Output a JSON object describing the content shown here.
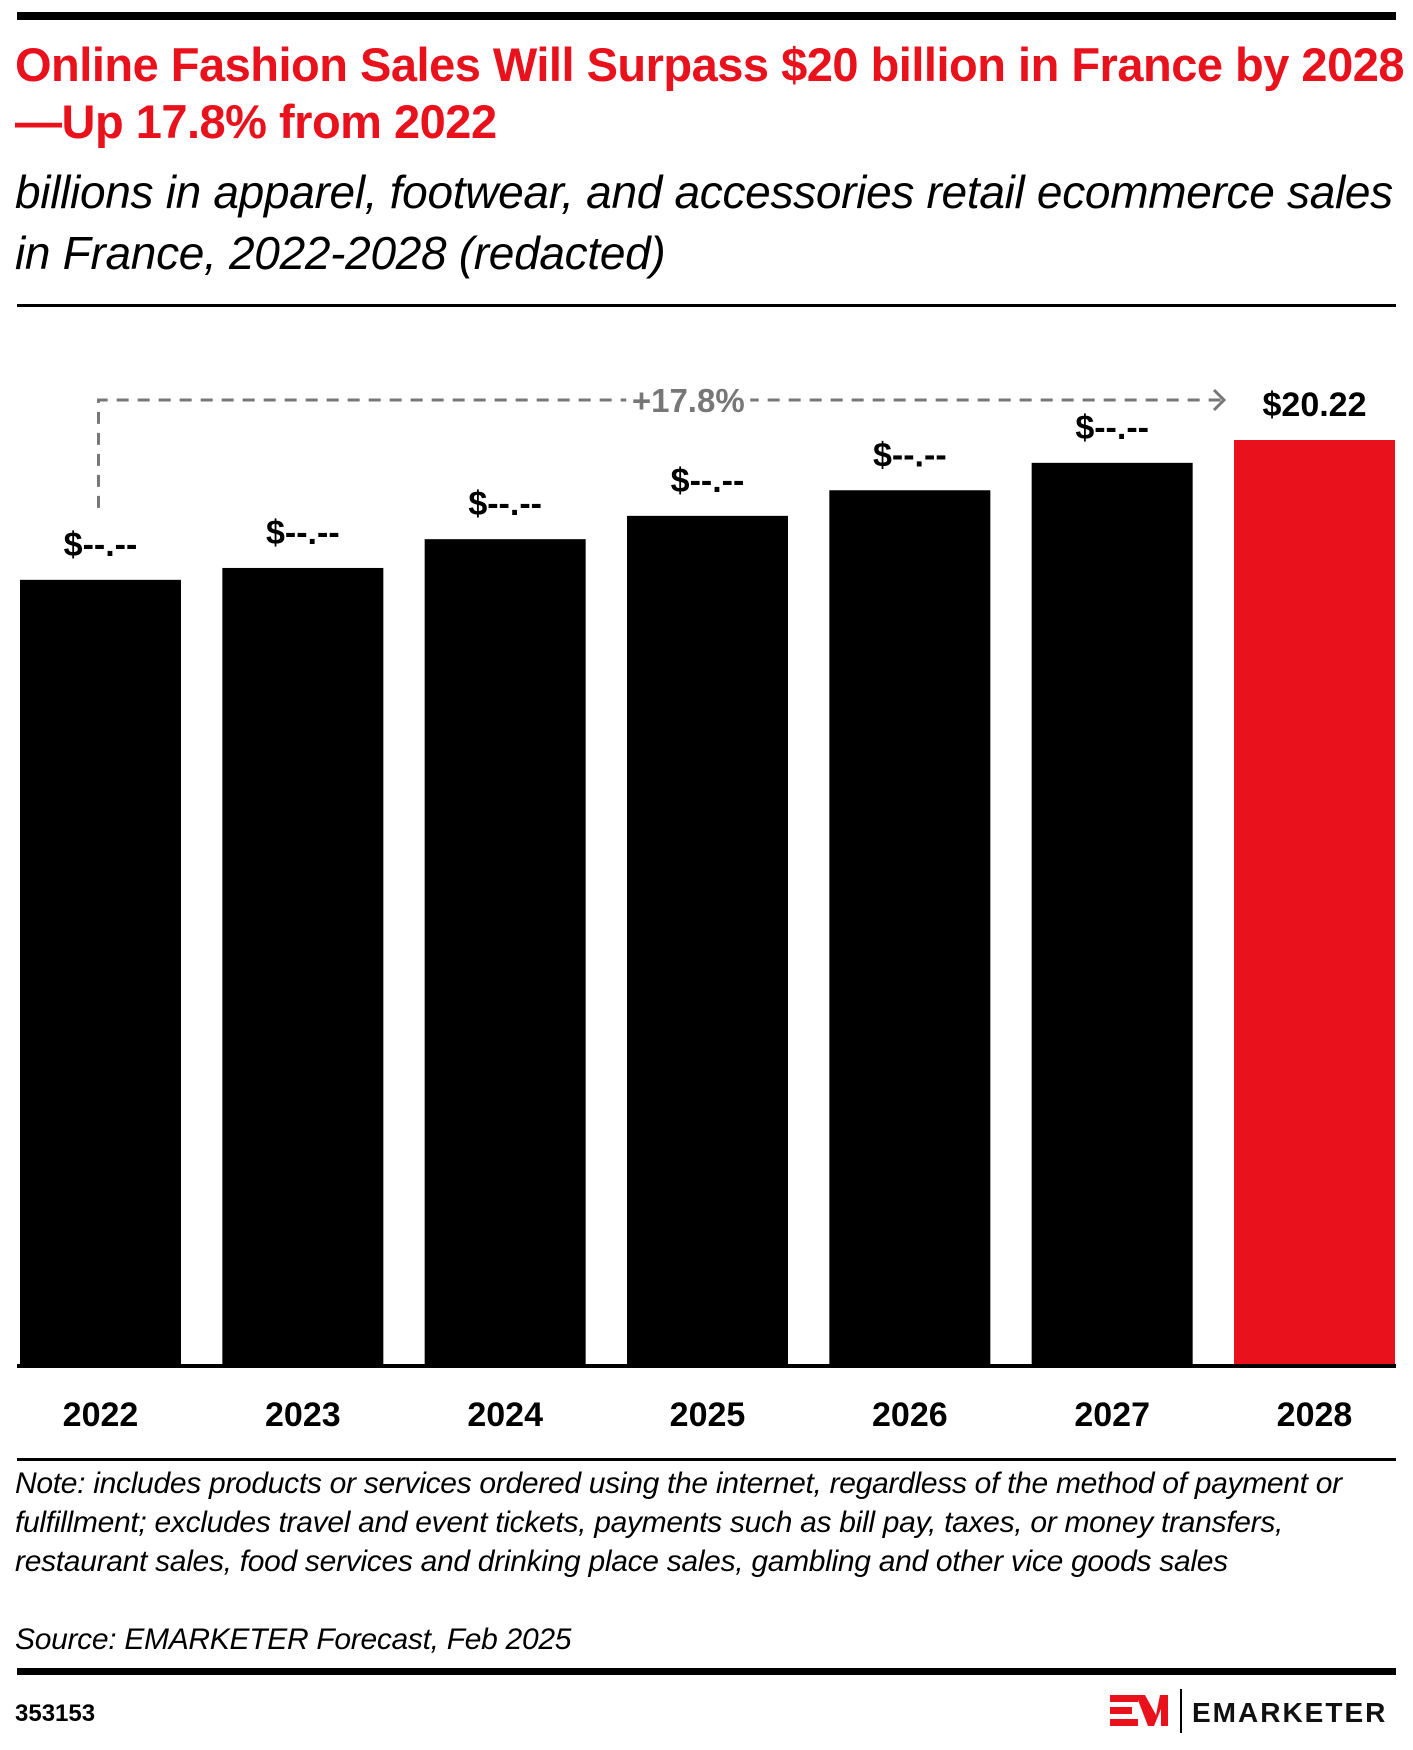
{
  "header": {
    "title": "Online Fashion Sales Will Surpass $20 billion in France by 2028—Up 17.8% from 2022",
    "subtitle": "billions in apparel, footwear, and accessories retail ecommerce sales in France, 2022-2028 (redacted)"
  },
  "chart_data": {
    "type": "bar",
    "title": "Online Fashion Sales Will Surpass $20 billion in France by 2028—Up 17.8% from 2022",
    "subtitle": "billions in apparel, footwear, and accessories retail ecommerce sales in France, 2022-2028 (redacted)",
    "xlabel": "",
    "ylabel": "",
    "categories": [
      "2022",
      "2023",
      "2024",
      "2025",
      "2026",
      "2027",
      "2028"
    ],
    "values": [
      17.16,
      17.42,
      18.05,
      18.56,
      19.12,
      19.72,
      20.22
    ],
    "value_labels": [
      "$--.--",
      "$--.--",
      "$--.--",
      "$--.--",
      "$--.--",
      "$--.--",
      "$20.22"
    ],
    "ylim": [
      0,
      20.22
    ],
    "grid": false,
    "legend": "none",
    "colors": {
      "default": "#000000",
      "highlight": "#e8111c",
      "annotation": "#777777"
    },
    "highlight_index": 6,
    "annotation": {
      "text": "+17.8%",
      "from": "2022",
      "to": "2028"
    }
  },
  "footer": {
    "note": "Note: includes products or services ordered using the internet, regardless of the method of payment or fulfillment; excludes travel and event tickets, payments such as bill pay, taxes, or money transfers, restaurant sales, food services and drinking place sales, gambling and other vice goods sales",
    "source": "Source: EMARKETER Forecast, Feb 2025",
    "chart_id": "353153",
    "brand": "EMARKETER",
    "brand_mark": "EM"
  }
}
